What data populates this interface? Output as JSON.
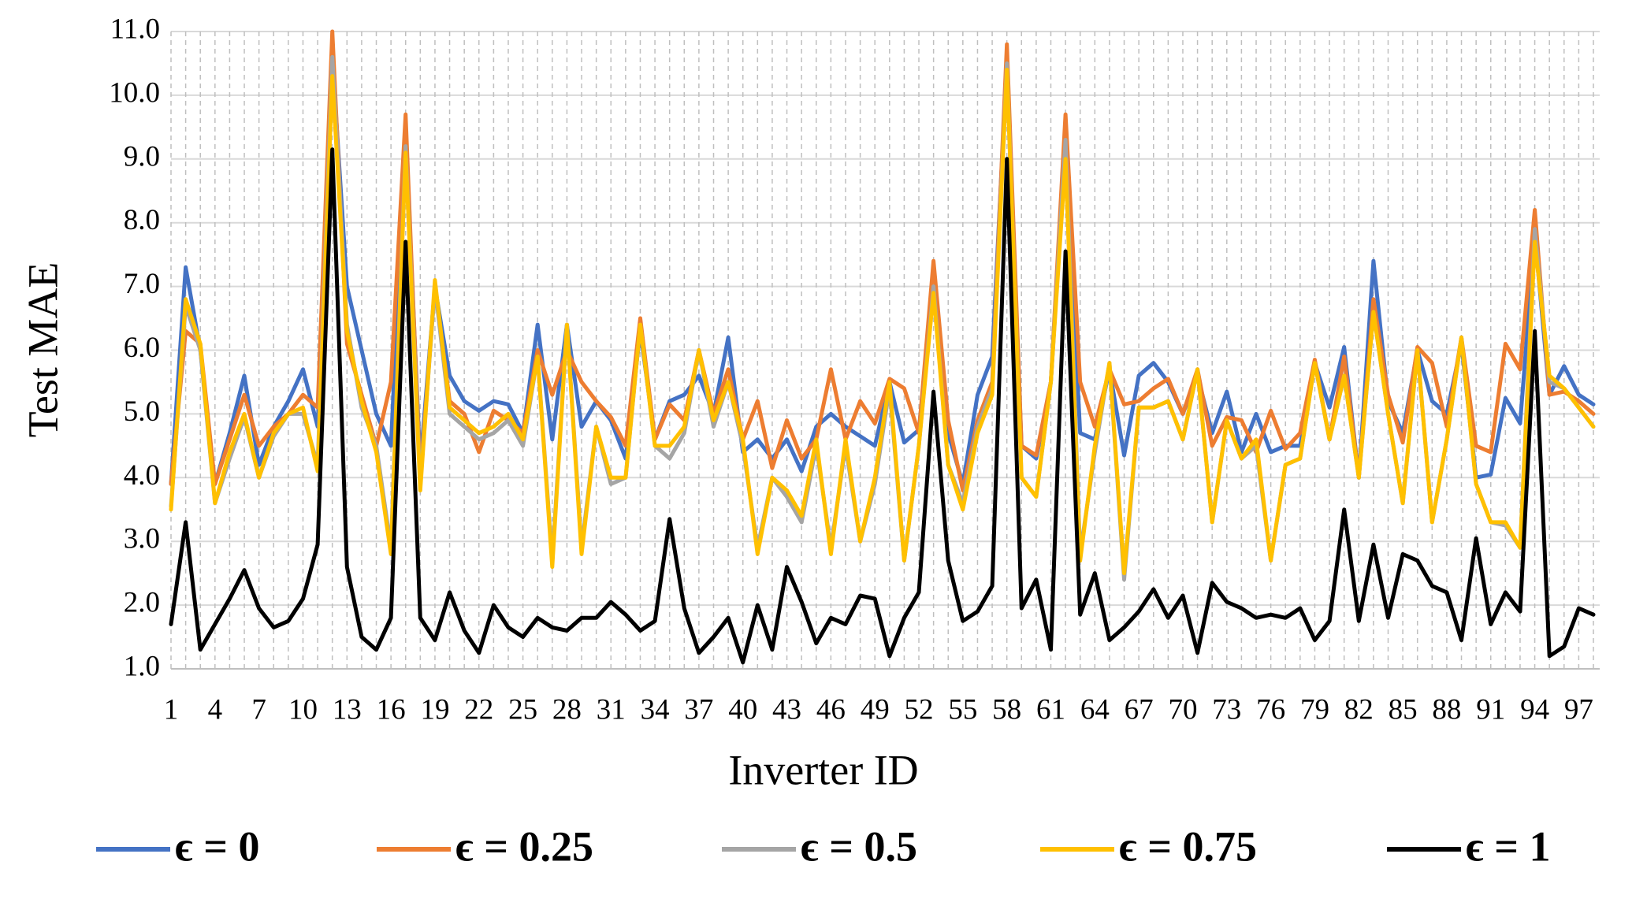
{
  "chart_data": {
    "type": "line",
    "xlabel": "Inverter ID",
    "ylabel": "Test MAE",
    "categories": [
      "1",
      null,
      null,
      "4",
      null,
      null,
      "7",
      null,
      null,
      "10",
      null,
      null,
      "13",
      null,
      null,
      "16",
      null,
      null,
      "19",
      null,
      null,
      "22",
      null,
      null,
      "25",
      null,
      null,
      "28",
      null,
      null,
      "31",
      null,
      null,
      "34",
      null,
      null,
      "37",
      null,
      null,
      "40",
      null,
      null,
      "43",
      null,
      null,
      "46",
      null,
      null,
      "49",
      null,
      null,
      "52",
      null,
      null,
      "55",
      null,
      null,
      "58",
      null,
      null,
      "61",
      null,
      null,
      "64",
      null,
      null,
      "67",
      null,
      null,
      "70",
      null,
      null,
      "73",
      null,
      null,
      "76",
      null,
      null,
      "79",
      null,
      null,
      "82",
      null,
      null,
      "85",
      null,
      null,
      "88",
      null,
      null,
      "91",
      null,
      null,
      "94",
      null,
      null,
      "97",
      null
    ],
    "ylim": [
      1,
      11
    ],
    "yticks": [
      {
        "value": 1,
        "label": "1.0"
      },
      {
        "value": 2,
        "label": "2.0"
      },
      {
        "value": 3,
        "label": "3.0"
      },
      {
        "value": 4,
        "label": "4.0"
      },
      {
        "value": 5,
        "label": "5.0"
      },
      {
        "value": 6,
        "label": "6.0"
      },
      {
        "value": 7,
        "label": "7.0"
      },
      {
        "value": 8,
        "label": "8.0"
      },
      {
        "value": 9,
        "label": "9.0"
      },
      {
        "value": 10,
        "label": "10.0"
      },
      {
        "value": 11,
        "label": "11.0"
      }
    ],
    "grid": true,
    "legend": "bottom",
    "series": [
      {
        "name": "ϵ = 0",
        "color": "#4472c4",
        "values": [
          3.9,
          7.3,
          6.0,
          3.9,
          4.7,
          5.6,
          4.2,
          4.8,
          5.2,
          5.7,
          4.8,
          10.6,
          7.0,
          6.0,
          5.0,
          4.5,
          9.4,
          4.2,
          7.0,
          5.6,
          5.2,
          5.05,
          5.2,
          5.15,
          4.7,
          6.4,
          4.6,
          6.4,
          4.8,
          5.2,
          4.9,
          4.3,
          6.3,
          4.6,
          5.2,
          5.3,
          5.6,
          5.0,
          6.2,
          4.4,
          4.6,
          4.3,
          4.6,
          4.1,
          4.8,
          5.0,
          4.8,
          4.65,
          4.5,
          5.5,
          4.55,
          4.75,
          7.0,
          4.7,
          3.9,
          5.3,
          5.9,
          10.5,
          4.5,
          4.3,
          5.5,
          9.2,
          4.7,
          4.6,
          5.7,
          4.35,
          5.6,
          5.8,
          5.5,
          5.0,
          5.6,
          4.7,
          5.35,
          4.4,
          5.0,
          4.4,
          4.5,
          4.5,
          5.8,
          5.1,
          6.05,
          4.0,
          7.4,
          5.2,
          4.7,
          6.0,
          5.2,
          5.0,
          6.1,
          4.0,
          4.05,
          5.25,
          4.85,
          7.8,
          5.3,
          5.75,
          5.3,
          5.15
        ]
      },
      {
        "name": "ϵ = 0.25",
        "color": "#ed7d31",
        "values": [
          3.9,
          6.3,
          6.1,
          3.9,
          4.6,
          5.3,
          4.5,
          4.8,
          5.0,
          5.3,
          5.1,
          11.0,
          6.1,
          5.3,
          4.5,
          5.5,
          9.7,
          4.0,
          7.0,
          5.2,
          5.0,
          4.4,
          5.05,
          4.9,
          4.7,
          6.0,
          5.3,
          6.0,
          5.5,
          5.2,
          4.95,
          4.5,
          6.5,
          4.6,
          5.15,
          4.9,
          6.0,
          5.0,
          5.7,
          4.6,
          5.2,
          4.15,
          4.9,
          4.3,
          4.6,
          5.7,
          4.6,
          5.2,
          4.85,
          5.55,
          5.4,
          4.7,
          7.4,
          4.9,
          3.8,
          4.9,
          5.5,
          10.8,
          4.5,
          4.35,
          5.5,
          9.7,
          5.5,
          4.8,
          5.7,
          5.15,
          5.2,
          5.4,
          5.55,
          5.0,
          5.7,
          4.5,
          4.95,
          4.9,
          4.4,
          5.05,
          4.45,
          4.7,
          5.85,
          4.6,
          5.9,
          4.0,
          6.8,
          5.3,
          4.55,
          6.05,
          5.8,
          4.8,
          6.2,
          4.5,
          4.4,
          6.1,
          5.7,
          8.2,
          5.3,
          5.35,
          5.2,
          5.0
        ]
      },
      {
        "name": "ϵ = 0.5",
        "color": "#a5a5a5",
        "values": [
          3.55,
          6.7,
          6.0,
          3.6,
          4.3,
          4.95,
          4.0,
          4.65,
          5.0,
          5.0,
          4.2,
          10.6,
          6.4,
          5.1,
          4.5,
          2.9,
          9.2,
          3.9,
          7.0,
          5.0,
          4.8,
          4.6,
          4.7,
          4.9,
          4.5,
          5.9,
          2.7,
          6.4,
          2.9,
          4.8,
          3.9,
          4.0,
          6.4,
          4.5,
          4.3,
          4.7,
          6.0,
          4.8,
          5.5,
          4.5,
          2.9,
          4.0,
          3.7,
          3.3,
          4.5,
          2.9,
          4.5,
          3.0,
          3.9,
          5.4,
          2.7,
          4.5,
          7.0,
          4.2,
          3.6,
          4.8,
          5.4,
          10.5,
          4.0,
          3.7,
          5.5,
          9.3,
          2.8,
          4.4,
          5.8,
          2.4,
          5.1,
          5.1,
          5.2,
          4.6,
          5.7,
          3.3,
          4.9,
          4.3,
          4.5,
          2.7,
          4.2,
          4.3,
          5.8,
          4.6,
          5.6,
          4.0,
          6.6,
          5.0,
          3.6,
          6.0,
          3.3,
          4.6,
          6.2,
          3.9,
          3.3,
          3.25,
          2.9,
          7.9,
          5.5,
          5.4,
          5.1,
          4.8
        ]
      },
      {
        "name": "ϵ = 0.75",
        "color": "#ffc000",
        "values": [
          3.5,
          6.8,
          6.1,
          3.6,
          4.4,
          5.0,
          4.0,
          4.7,
          5.0,
          5.1,
          4.1,
          10.3,
          6.3,
          5.2,
          4.4,
          2.8,
          9.1,
          3.8,
          7.1,
          5.1,
          4.9,
          4.7,
          4.8,
          5.0,
          4.6,
          5.9,
          2.6,
          6.4,
          2.8,
          4.8,
          4.0,
          4.0,
          6.4,
          4.5,
          4.5,
          4.8,
          6.0,
          4.9,
          5.5,
          4.6,
          2.8,
          4.0,
          3.8,
          3.4,
          4.6,
          2.8,
          4.6,
          3.0,
          4.0,
          5.5,
          2.7,
          4.5,
          6.9,
          4.2,
          3.5,
          4.7,
          5.3,
          10.4,
          4.0,
          3.7,
          5.5,
          9.0,
          2.7,
          4.5,
          5.8,
          2.5,
          5.1,
          5.1,
          5.2,
          4.6,
          5.7,
          3.3,
          4.9,
          4.3,
          4.6,
          2.7,
          4.2,
          4.3,
          5.8,
          4.6,
          5.6,
          4.0,
          6.6,
          5.0,
          3.6,
          6.0,
          3.3,
          4.6,
          6.2,
          3.9,
          3.3,
          3.3,
          2.9,
          7.7,
          5.6,
          5.4,
          5.1,
          4.8
        ]
      },
      {
        "name": "ϵ = 1",
        "color": "#000000",
        "values": [
          1.7,
          3.3,
          1.3,
          1.7,
          2.1,
          2.55,
          1.95,
          1.65,
          1.75,
          2.1,
          2.95,
          9.15,
          2.6,
          1.5,
          1.3,
          1.8,
          7.7,
          1.8,
          1.45,
          2.2,
          1.6,
          1.25,
          2.0,
          1.65,
          1.5,
          1.8,
          1.65,
          1.6,
          1.8,
          1.8,
          2.05,
          1.85,
          1.6,
          1.75,
          3.35,
          1.95,
          1.25,
          1.5,
          1.8,
          1.1,
          2.0,
          1.3,
          2.6,
          2.05,
          1.4,
          1.8,
          1.7,
          2.15,
          2.1,
          1.2,
          1.8,
          2.2,
          5.35,
          2.7,
          1.75,
          1.9,
          2.3,
          9.0,
          1.95,
          2.4,
          1.3,
          7.55,
          1.85,
          2.5,
          1.45,
          1.65,
          1.9,
          2.25,
          1.8,
          2.15,
          1.25,
          2.35,
          2.05,
          1.95,
          1.8,
          1.85,
          1.8,
          1.95,
          1.45,
          1.75,
          3.5,
          1.75,
          2.95,
          1.8,
          2.8,
          2.7,
          2.3,
          2.2,
          1.45,
          3.05,
          1.7,
          2.2,
          1.9,
          6.3,
          1.2,
          1.35,
          1.95,
          1.85
        ]
      }
    ]
  }
}
